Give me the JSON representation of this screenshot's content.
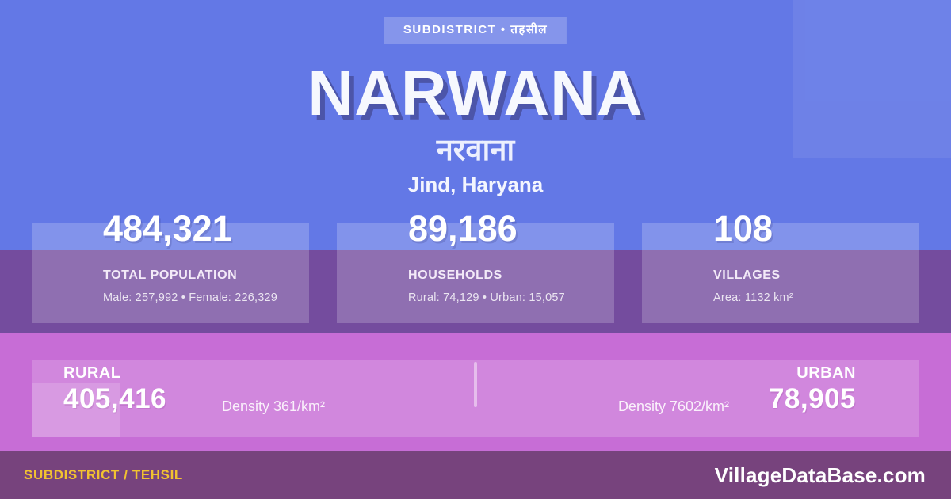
{
  "badge": {
    "label": "SUBDISTRICT • तहसील"
  },
  "header": {
    "title": "NARWANA",
    "title_hindi": "नरवाना",
    "location": "Jind, Haryana"
  },
  "stats": [
    {
      "value": "484,321",
      "label": "TOTAL POPULATION",
      "detail": "Male: 257,992 • Female: 226,329"
    },
    {
      "value": "89,186",
      "label": "HOUSEHOLDS",
      "detail": "Rural: 74,129 • Urban: 15,057"
    },
    {
      "value": "108",
      "label": "VILLAGES",
      "detail": "Area: 1132 km²"
    }
  ],
  "rural_urban": {
    "rural": {
      "label": "RURAL",
      "value": "405,416",
      "density": "Density 361/km²"
    },
    "urban": {
      "label": "URBAN",
      "value": "78,905",
      "density": "Density 7602/km²"
    }
  },
  "footer": {
    "left": "SUBDISTRICT / TEHSIL",
    "right": "VillageDataBase.com"
  },
  "colors": {
    "background": "#6378E6",
    "purple_band": "#744C9E",
    "pink_band": "#C76DD6",
    "footer_bar": "#77437D",
    "accent_yellow": "#F2C230",
    "title_shadow": "#4C55A9"
  }
}
